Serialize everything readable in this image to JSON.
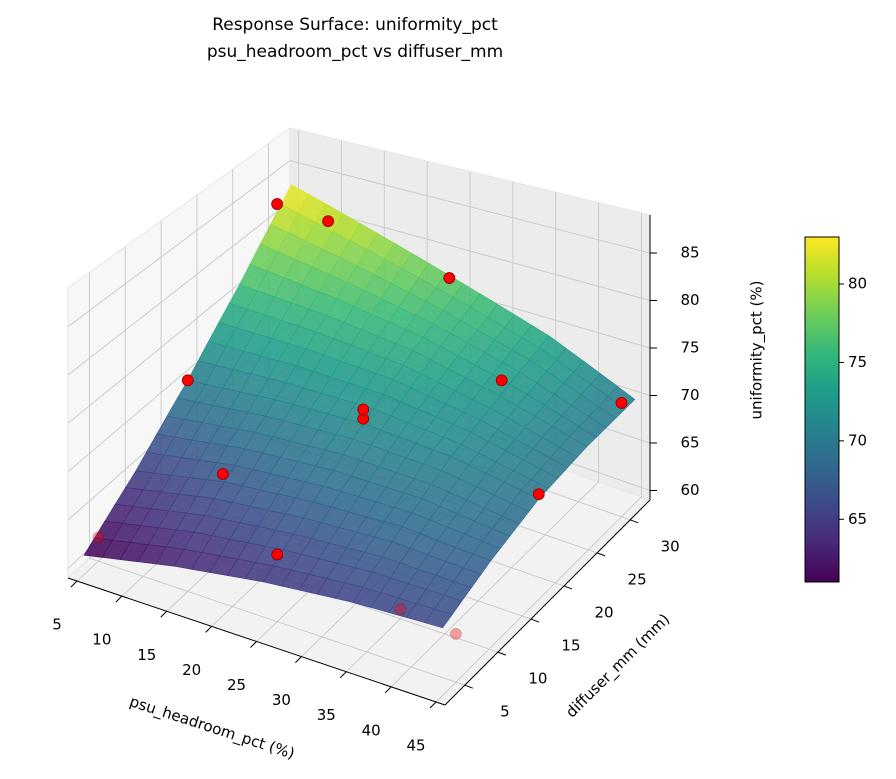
{
  "chart_data": {
    "type": "surface3d",
    "title": [
      "Response Surface: uniformity_pct",
      "psu_headroom_pct vs diffuser_mm"
    ],
    "xlabel": "psu_headroom_pct (%)",
    "ylabel": "diffuser_mm (mm)",
    "zlabel": "uniformity_pct (%)",
    "xlim": [
      4,
      46
    ],
    "ylim": [
      2,
      33
    ],
    "zlim": [
      59,
      89
    ],
    "xticks": [
      5,
      10,
      15,
      20,
      25,
      30,
      35,
      40,
      45
    ],
    "yticks": [
      5,
      10,
      15,
      20,
      25,
      30
    ],
    "zticks": [
      60,
      65,
      70,
      75,
      80,
      85
    ],
    "colormap": "viridis",
    "surface": {
      "x": [
        5,
        15,
        25,
        35,
        45
      ],
      "y": [
        3,
        10.25,
        17.5,
        24.75,
        32
      ],
      "z": [
        [
          61,
          63,
          64.5,
          65.5,
          66
        ],
        [
          65,
          67,
          68,
          68.5,
          68
        ],
        [
          70,
          71,
          71.5,
          71,
          69.5
        ],
        [
          76,
          75.5,
          74.5,
          72.5,
          70
        ],
        [
          83,
          80,
          77,
          74,
          70
        ]
      ]
    },
    "colorbar": {
      "lim": [
        61,
        83
      ],
      "ticks": [
        65,
        70,
        75,
        80
      ]
    },
    "scatter": {
      "color": "#ff0000",
      "edgecolor": "#8b0000",
      "x": [
        5,
        5,
        5,
        25,
        25,
        25,
        45,
        45,
        45,
        15,
        35,
        25,
        15,
        35
      ],
      "y": [
        5,
        17.5,
        30,
        5,
        17.5,
        30,
        5,
        17.5,
        30,
        10,
        25,
        17.5,
        25,
        10
      ],
      "z": [
        61.5,
        70,
        82,
        66,
        72,
        79,
        64,
        70,
        71,
        68,
        74,
        73,
        86,
        60
      ]
    }
  }
}
